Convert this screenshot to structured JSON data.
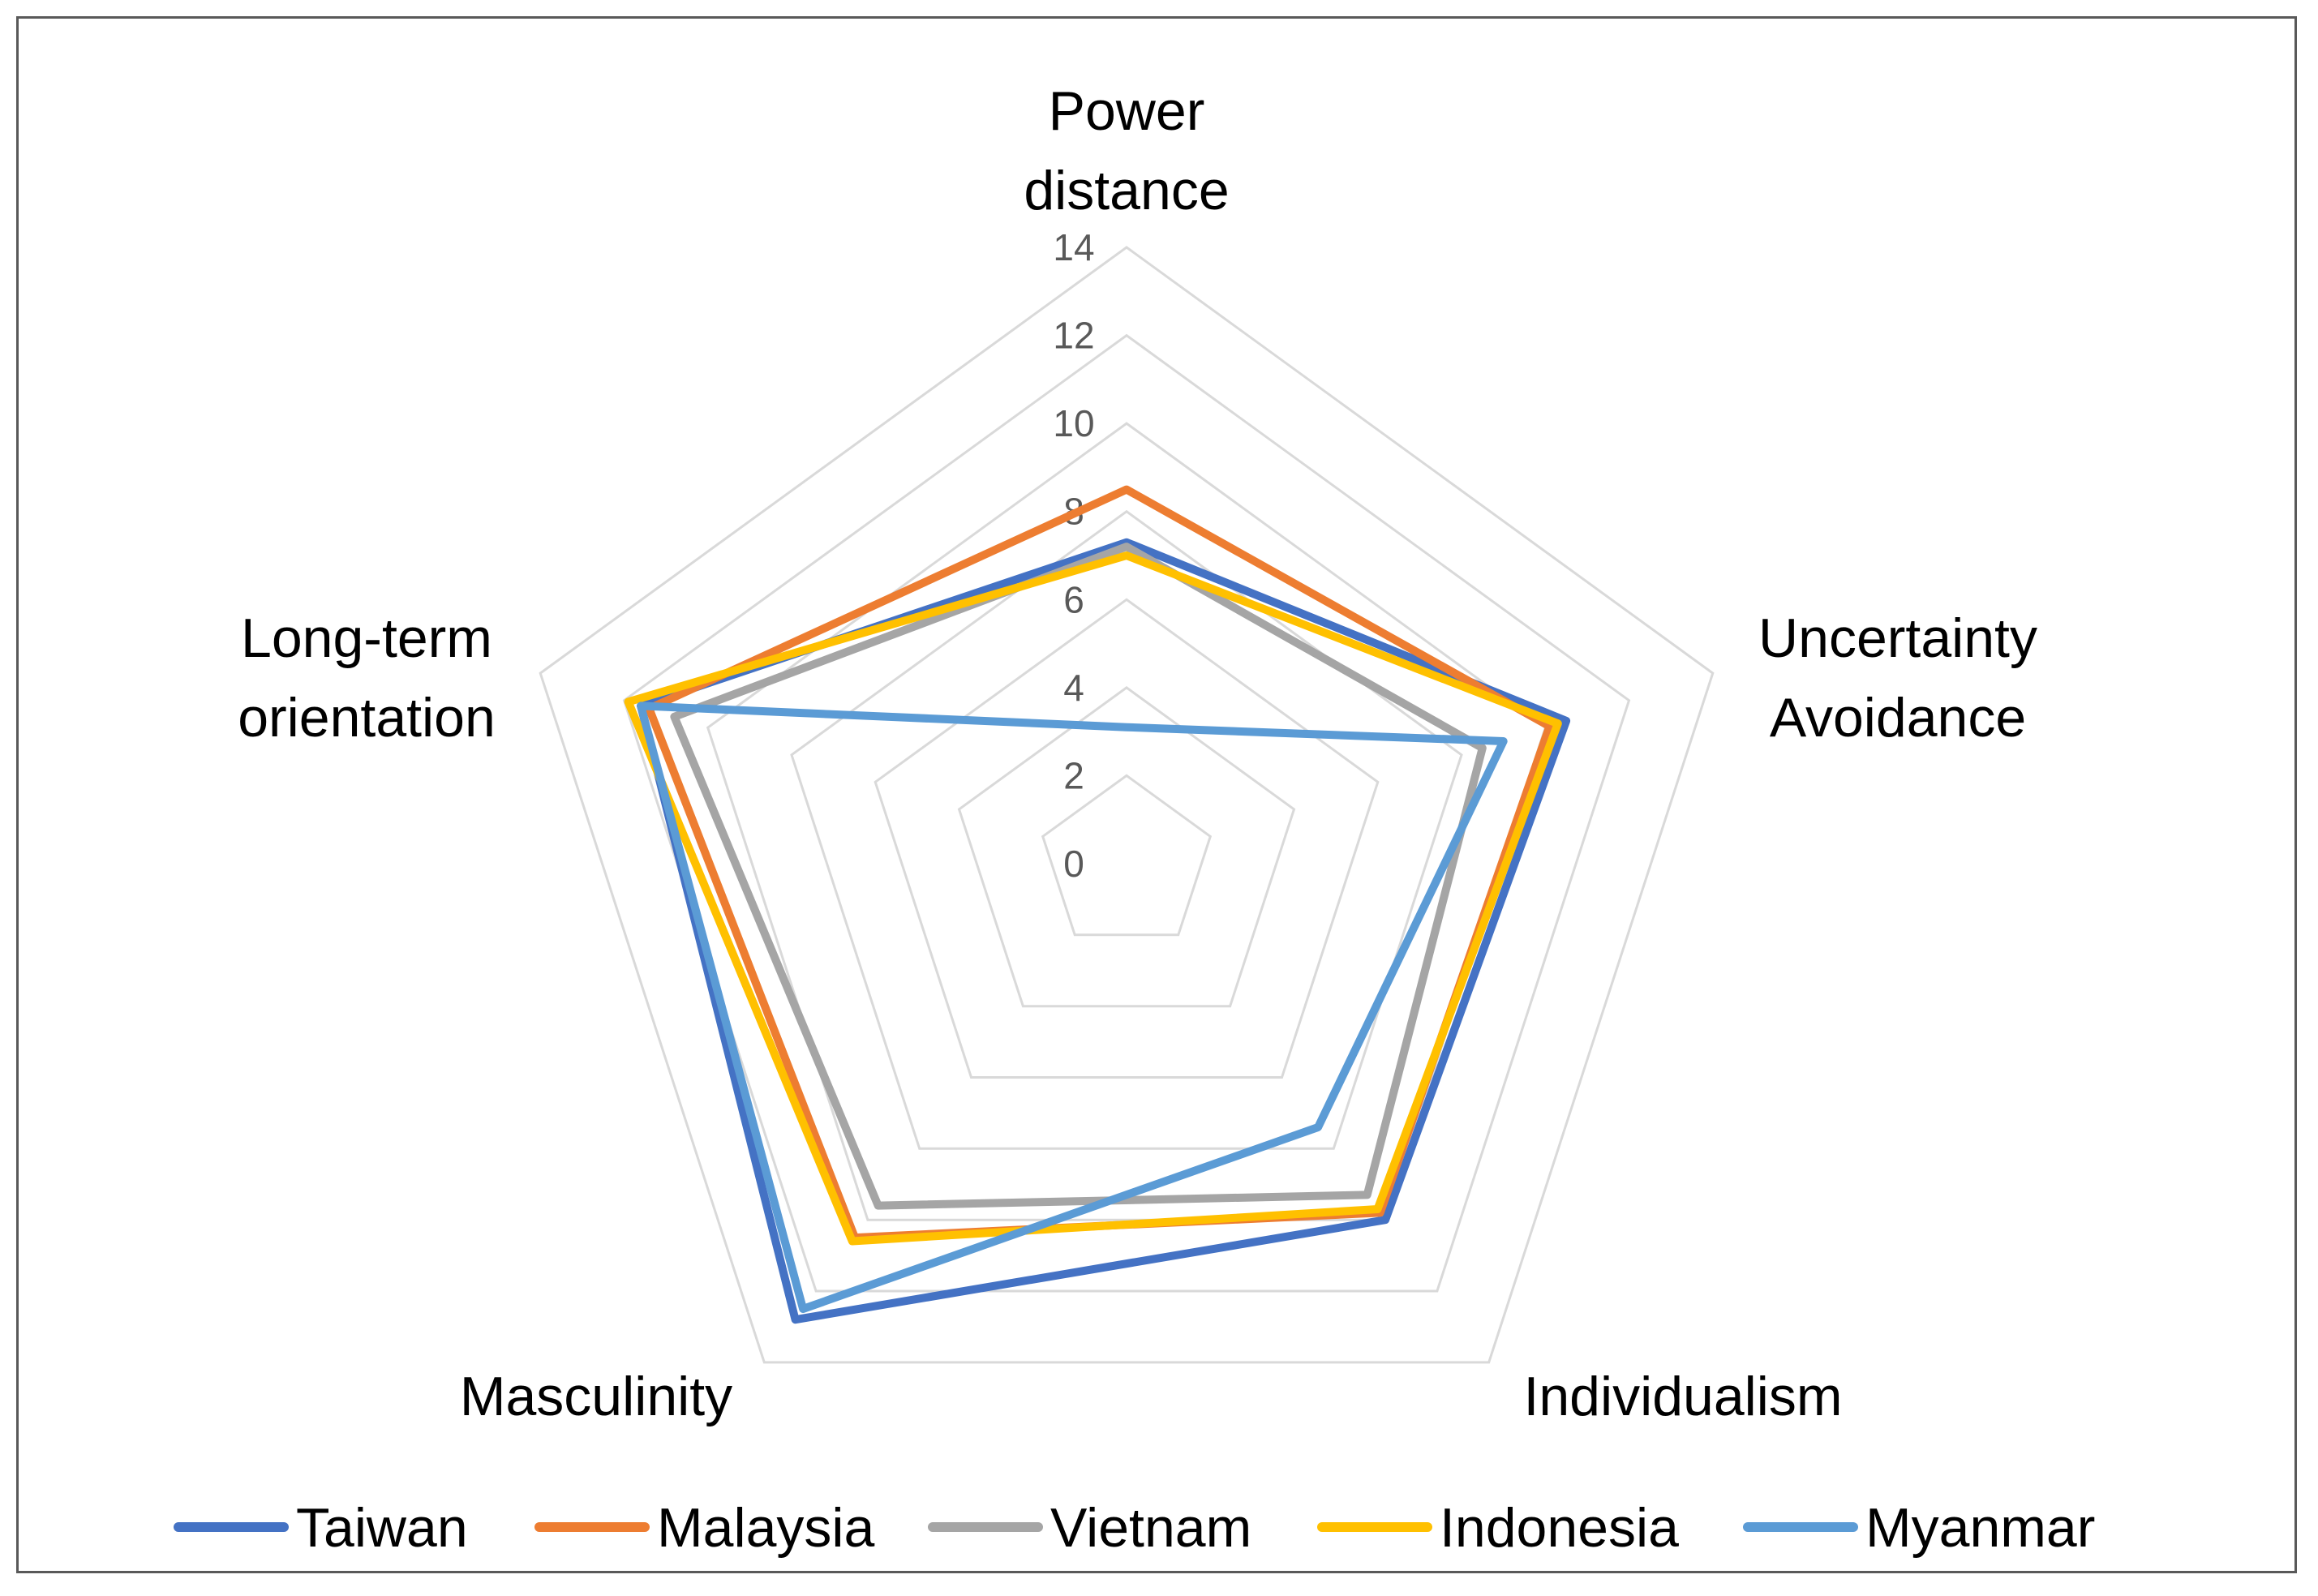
{
  "chart_data": {
    "type": "radar",
    "axes": [
      "Power distance",
      "Uncertainty Avoidance",
      "Individualism",
      "Masculinity",
      "Long-term orientation"
    ],
    "axis_label_lines": [
      [
        "Power",
        "distance"
      ],
      [
        "Uncertainty",
        "Avoidance"
      ],
      [
        "Individualism"
      ],
      [
        "Masculinity"
      ],
      [
        "Long-term",
        "orientation"
      ]
    ],
    "r_range": [
      0,
      14
    ],
    "ticks": [
      "0",
      "2",
      "4",
      "6",
      "8",
      "10",
      "12",
      "14"
    ],
    "grid": true,
    "legend_position": "bottom",
    "series": [
      {
        "name": "Taiwan",
        "color": "#4472C4",
        "values": [
          7.3,
          10.5,
          10.0,
          12.8,
          11.6
        ]
      },
      {
        "name": "Malaysia",
        "color": "#ED7D31",
        "values": [
          8.5,
          10.1,
          9.8,
          10.5,
          11.4
        ]
      },
      {
        "name": "Vietnam",
        "color": "#A5A5A5",
        "values": [
          7.2,
          8.5,
          9.3,
          9.6,
          10.8
        ]
      },
      {
        "name": "Indonesia",
        "color": "#FFC000",
        "values": [
          7.0,
          10.3,
          9.7,
          10.6,
          11.9
        ]
      },
      {
        "name": "Myanmar",
        "color": "#5B9BD5",
        "values": [
          3.1,
          9.0,
          7.4,
          12.5,
          11.6
        ]
      }
    ]
  }
}
